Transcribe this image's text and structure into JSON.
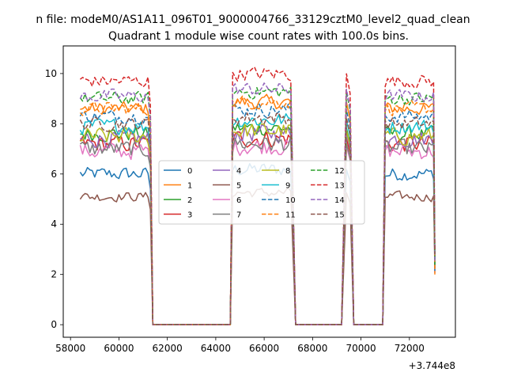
{
  "chart_data": {
    "type": "line",
    "suptitle": "n file: modeM0/AS1A11_096T01_9000004766_33129cztM0_level2_quad_clean",
    "title": "Quadrant 1 module wise count rates with 100.0s bins.",
    "xlabel": "",
    "ylabel": "",
    "x_offset_label": "+3.744e8",
    "xlim": [
      57700,
      73900
    ],
    "ylim": [
      -0.5,
      11.1
    ],
    "x_ticks": [
      58000,
      60000,
      62000,
      64000,
      66000,
      68000,
      70000,
      72000
    ],
    "x_tick_labels": [
      "58000",
      "60000",
      "62000",
      "64000",
      "66000",
      "68000",
      "70000",
      "72000"
    ],
    "y_ticks": [
      0,
      2,
      4,
      6,
      8,
      10
    ],
    "y_tick_labels": [
      "0",
      "2",
      "4",
      "6",
      "8",
      "10"
    ],
    "grid": false,
    "legend_position": "center",
    "legend_columns": 4,
    "segments": [
      {
        "start": 58400,
        "end": 61200,
        "drop_end": 61400,
        "tail": 61400
      },
      {
        "start": 64700,
        "end": 67100,
        "rise_start": 64600,
        "drop_end": 67300
      },
      {
        "start": 69400,
        "end": 69550,
        "rise_start": 69200,
        "drop_end": 69700
      },
      {
        "start": 71000,
        "end": 73000,
        "rise_start": 70900,
        "final": 73050
      }
    ],
    "zero_gaps": [
      [
        61400,
        64600
      ],
      [
        67300,
        69200
      ],
      [
        69700,
        70900
      ]
    ],
    "series": [
      {
        "name": "0",
        "color": "#1f77b4",
        "dash": "solid",
        "level": 6.0,
        "jitter": 0.35
      },
      {
        "name": "1",
        "color": "#ff7f0e",
        "dash": "solid",
        "level": 8.6,
        "jitter": 0.35
      },
      {
        "name": "2",
        "color": "#2ca02c",
        "dash": "solid",
        "level": 7.6,
        "jitter": 0.4
      },
      {
        "name": "3",
        "color": "#d62728",
        "dash": "solid",
        "level": 7.2,
        "jitter": 0.45
      },
      {
        "name": "4",
        "color": "#9467bd",
        "dash": "solid",
        "level": 7.4,
        "jitter": 0.45
      },
      {
        "name": "5",
        "color": "#8c564b",
        "dash": "solid",
        "level": 5.1,
        "jitter": 0.25
      },
      {
        "name": "6",
        "color": "#e377c2",
        "dash": "solid",
        "level": 6.9,
        "jitter": 0.45
      },
      {
        "name": "7",
        "color": "#7f7f7f",
        "dash": "solid",
        "level": 7.0,
        "jitter": 0.45
      },
      {
        "name": "8",
        "color": "#bcbd22",
        "dash": "solid",
        "level": 7.5,
        "jitter": 0.45
      },
      {
        "name": "9",
        "color": "#17becf",
        "dash": "solid",
        "level": 7.9,
        "jitter": 0.4
      },
      {
        "name": "10",
        "color": "#1f77b4",
        "dash": "dashed",
        "level": 8.3,
        "jitter": 0.35
      },
      {
        "name": "11",
        "color": "#ff7f0e",
        "dash": "dashed",
        "level": 8.6,
        "jitter": 0.35
      },
      {
        "name": "12",
        "color": "#2ca02c",
        "dash": "dashed",
        "level": 9.0,
        "jitter": 0.35
      },
      {
        "name": "13",
        "color": "#d62728",
        "dash": "dashed",
        "level": 9.7,
        "jitter": 0.35
      },
      {
        "name": "14",
        "color": "#9467bd",
        "dash": "dashed",
        "level": 9.1,
        "jitter": 0.35
      },
      {
        "name": "15",
        "color": "#8c564b",
        "dash": "dashed",
        "level": 8.0,
        "jitter": 0.35
      }
    ]
  }
}
